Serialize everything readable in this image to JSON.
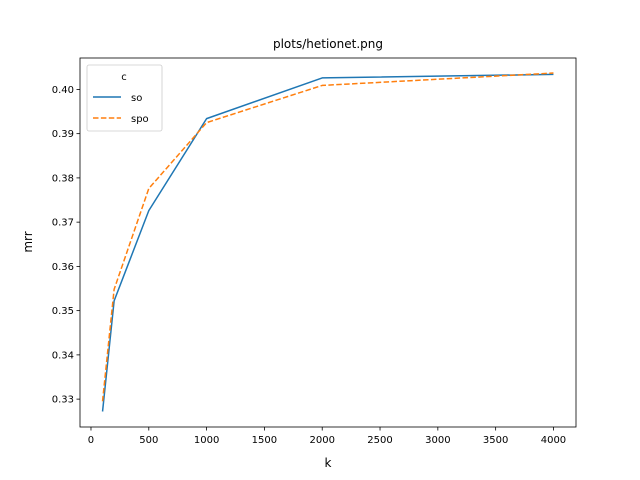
{
  "chart_data": {
    "type": "line",
    "title": "plots/hetionet.png",
    "xlabel": "k",
    "ylabel": "mrr",
    "x": [
      100,
      200,
      500,
      1000,
      2000,
      4000
    ],
    "xlim": [
      -95,
      4195
    ],
    "ylim": [
      0.3237,
      0.4071
    ],
    "xticks": [
      0,
      500,
      1000,
      1500,
      2000,
      2500,
      3000,
      3500,
      4000
    ],
    "yticks": [
      0.33,
      0.34,
      0.35,
      0.36,
      0.37,
      0.38,
      0.39,
      0.4
    ],
    "ytick_labels": [
      "0.33",
      "0.34",
      "0.35",
      "0.36",
      "0.37",
      "0.38",
      "0.39",
      "0.40"
    ],
    "legend": {
      "title": "c",
      "placement": "top-left"
    },
    "grid": false,
    "series": [
      {
        "name": "so",
        "color": "#1f77b4",
        "style": "solid",
        "values": [
          0.3272,
          0.3522,
          0.3726,
          0.3934,
          0.4026,
          0.4034
        ]
      },
      {
        "name": "spo",
        "color": "#ff7f0e",
        "style": "dashed",
        "values": [
          0.3295,
          0.3548,
          0.3776,
          0.3925,
          0.4009,
          0.4037
        ]
      }
    ]
  }
}
